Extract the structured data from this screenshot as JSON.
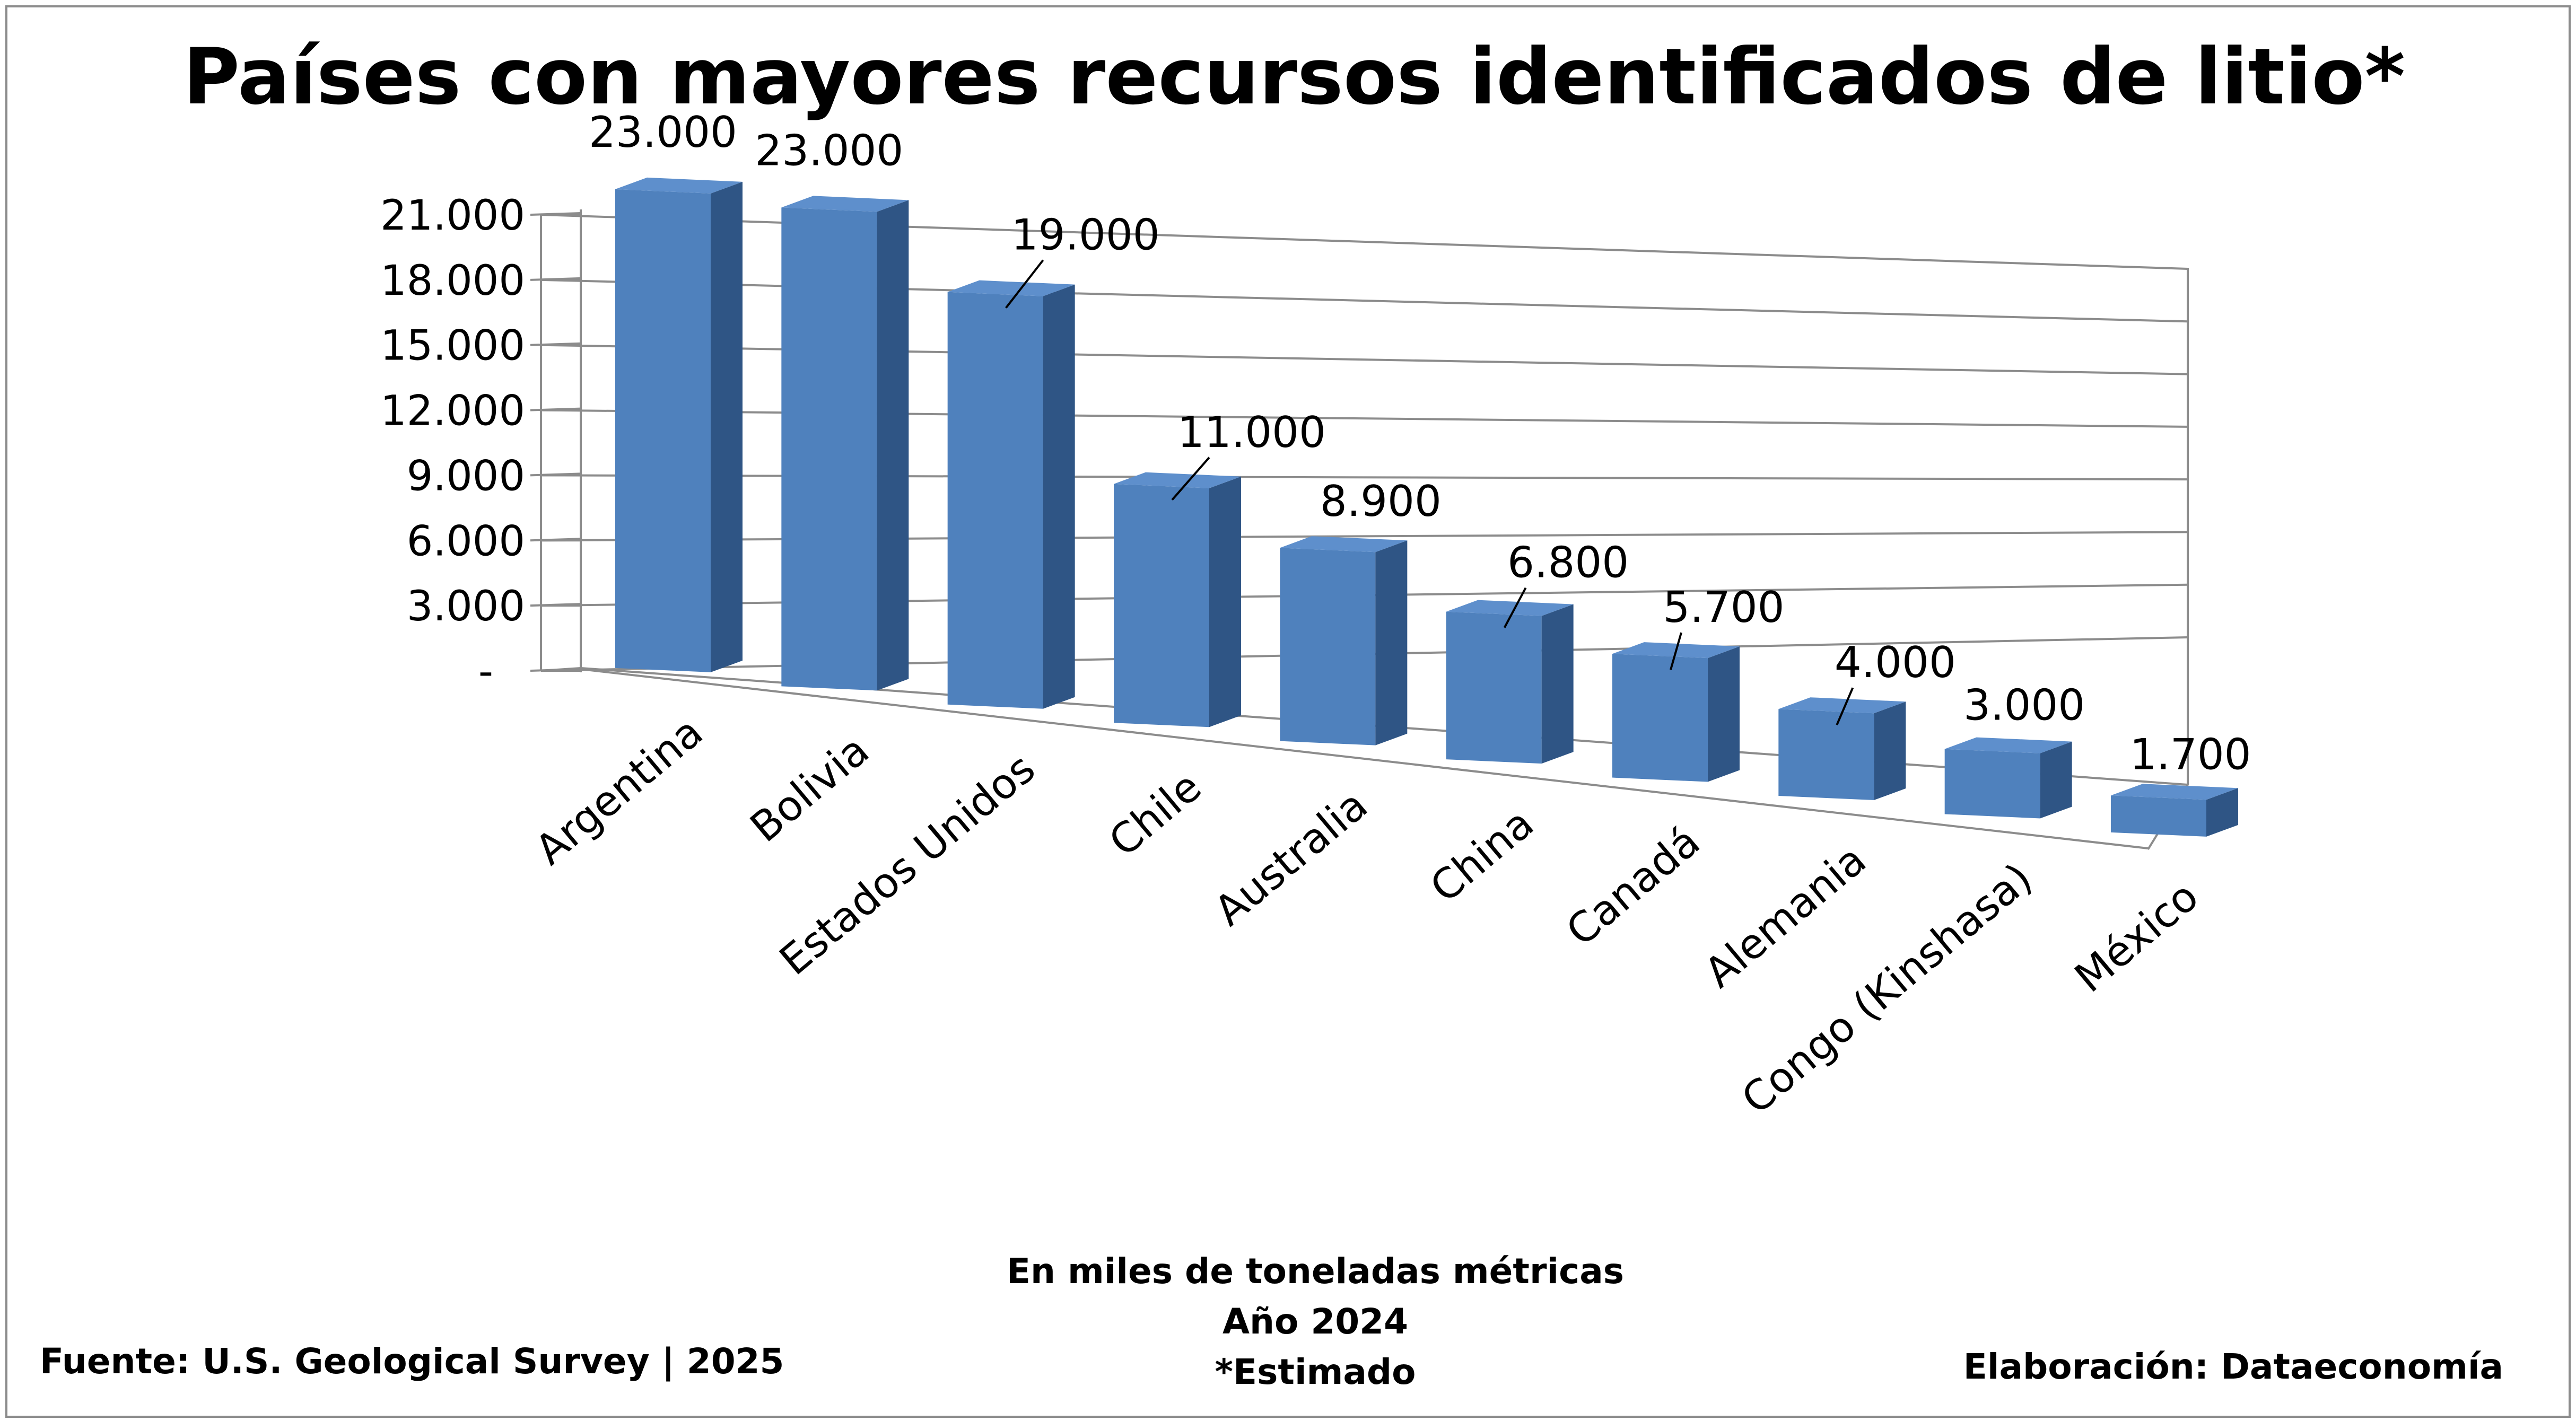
{
  "chart_data": {
    "type": "bar",
    "title": "Países con mayores recursos identificados de litio*",
    "categories": [
      "Argentina",
      "Bolivia",
      "Estados Unidos",
      "Chile",
      "Australia",
      "China",
      "Canadá",
      "Alemania",
      "Congo (Kinshasa)",
      "México"
    ],
    "values": [
      23000,
      23000,
      19000,
      11000,
      8900,
      6800,
      5700,
      4000,
      3000,
      1700
    ],
    "data_labels": [
      "23.000",
      "23.000",
      "19.000",
      "11.000",
      "8.900",
      "6.800",
      "5.700",
      "4.000",
      "3.000",
      "1.700"
    ],
    "yticks": [
      "-",
      "3.000",
      "6.000",
      "9.000",
      "12.000",
      "15.000",
      "18.000",
      "21.000"
    ],
    "ylim": [
      0,
      21000
    ],
    "grid": true,
    "legend": "none",
    "bar_style": "3d",
    "colors": {
      "bar_front": "#4f81bd",
      "bar_side": "#2f5585",
      "bar_top": "#5e8fcc",
      "grid": "#8c8c8c"
    }
  },
  "footer": {
    "unit_note": "En miles de toneladas métricas",
    "year_note": "Año 2024",
    "estimate_note": "*Estimado",
    "source": "Fuente: U.S. Geological Survey | 2025",
    "credit": "Elaboración: Dataeconomía"
  }
}
